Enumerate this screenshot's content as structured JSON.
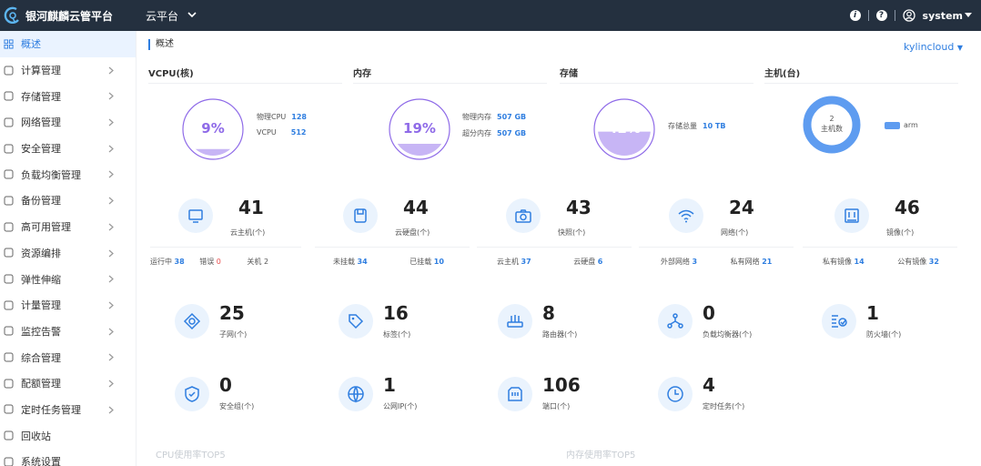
{
  "app": {
    "brand": "银河麒麟云管平台",
    "platform_menu": "云平台",
    "user": "system"
  },
  "colors": {
    "topbar": "#24303f",
    "accent": "#2f7ee0",
    "error": "#e84b4b",
    "gauge": "#8f6be8",
    "host": "#5e9cf0"
  },
  "sidebar": {
    "items": [
      {
        "label": "概述",
        "icon": "overview-icon",
        "active": true,
        "has_children": false
      },
      {
        "label": "计算管理",
        "icon": "compute-icon",
        "has_children": true
      },
      {
        "label": "存储管理",
        "icon": "storage-icon",
        "has_children": true
      },
      {
        "label": "网络管理",
        "icon": "network-icon",
        "has_children": true
      },
      {
        "label": "安全管理",
        "icon": "shield-icon",
        "has_children": true
      },
      {
        "label": "负载均衡管理",
        "icon": "load-balance-icon",
        "has_children": true
      },
      {
        "label": "备份管理",
        "icon": "backup-icon",
        "has_children": true
      },
      {
        "label": "高可用管理",
        "icon": "ha-icon",
        "has_children": true
      },
      {
        "label": "资源编排",
        "icon": "orchestration-icon",
        "has_children": true
      },
      {
        "label": "弹性伸缩",
        "icon": "scaling-icon",
        "has_children": true
      },
      {
        "label": "计量管理",
        "icon": "metering-icon",
        "has_children": true
      },
      {
        "label": "监控告警",
        "icon": "alarm-icon",
        "has_children": true
      },
      {
        "label": "综合管理",
        "icon": "integrated-icon",
        "has_children": true
      },
      {
        "label": "配额管理",
        "icon": "quota-icon",
        "has_children": true
      },
      {
        "label": "定时任务管理",
        "icon": "schedule-icon",
        "has_children": true
      },
      {
        "label": "回收站",
        "icon": "recycle-icon",
        "has_children": false
      },
      {
        "label": "系统设置",
        "icon": "settings-icon",
        "has_children": false
      }
    ]
  },
  "overview": {
    "title": "概述",
    "cloud": "kylincloud"
  },
  "vcpu": {
    "title": "VCPU(核)",
    "percent_label": "9%",
    "percent": 9,
    "physical_label": "物理CPU",
    "physical_value": "128",
    "vcpu_label": "VCPU",
    "vcpu_value": "512"
  },
  "memory": {
    "title": "内存",
    "percent_label": "19%",
    "percent": 19,
    "physical_label": "物理内存",
    "physical_value": "507 GB",
    "over_label": "超分内存",
    "over_value": "507 GB"
  },
  "storage": {
    "title": "存储",
    "percent_label": "42%",
    "percent": 42,
    "total_label": "存储总量",
    "total_value": "10 TB"
  },
  "hosts": {
    "title": "主机(台)",
    "count": "2",
    "count_label": "主机数",
    "legend": "arm"
  },
  "stats_row1": [
    {
      "key": "vm",
      "icon": "monitor-icon",
      "value": "41",
      "label": "云主机(个)"
    },
    {
      "key": "disk",
      "icon": "disk-icon",
      "value": "44",
      "label": "云硬盘(个)"
    },
    {
      "key": "snapshot",
      "icon": "camera-icon",
      "value": "43",
      "label": "快照(个)"
    },
    {
      "key": "network",
      "icon": "wifi-icon",
      "value": "24",
      "label": "网络(个)"
    },
    {
      "key": "image",
      "icon": "image-icon",
      "value": "46",
      "label": "镜像(个)"
    }
  ],
  "sub_stats": {
    "vm": {
      "running_label": "运行中",
      "running": "38",
      "error_label": "错误",
      "error": "0",
      "off_label": "关机",
      "off": "2"
    },
    "disk": {
      "unmounted_label": "未挂载",
      "unmounted": "34",
      "mounted_label": "已挂载",
      "mounted": "10"
    },
    "snapshot": {
      "vm_label": "云主机",
      "vm": "37",
      "disk_label": "云硬盘",
      "disk": "6"
    },
    "network": {
      "external_label": "外部网络",
      "external": "3",
      "private_label": "私有网络",
      "private": "21"
    },
    "image": {
      "private_label": "私有镜像",
      "private": "14",
      "public_label": "公有镜像",
      "public": "32"
    }
  },
  "stats_row2": [
    {
      "key": "subnet",
      "icon": "subnet-icon",
      "value": "25",
      "label": "子网(个)"
    },
    {
      "key": "tag",
      "icon": "tag-icon",
      "value": "16",
      "label": "标签(个)"
    },
    {
      "key": "router",
      "icon": "router-icon",
      "value": "8",
      "label": "路由器(个)"
    },
    {
      "key": "lb",
      "icon": "load-balancer-icon",
      "value": "0",
      "label": "负载均衡器(个)"
    },
    {
      "key": "firewall",
      "icon": "firewall-icon",
      "value": "1",
      "label": "防火墙(个)"
    }
  ],
  "stats_row3": [
    {
      "key": "secgroup",
      "icon": "security-group-icon",
      "value": "0",
      "label": "安全组(个)"
    },
    {
      "key": "publicip",
      "icon": "globe-icon",
      "value": "1",
      "label": "公网IP(个)"
    },
    {
      "key": "port",
      "icon": "port-icon",
      "value": "106",
      "label": "端口(个)"
    },
    {
      "key": "schedule",
      "icon": "clock-icon",
      "value": "4",
      "label": "定时任务(个)"
    }
  ],
  "footer": {
    "cpu_top": "CPU使用率TOP5",
    "mem_top": "内存使用率TOP5"
  }
}
